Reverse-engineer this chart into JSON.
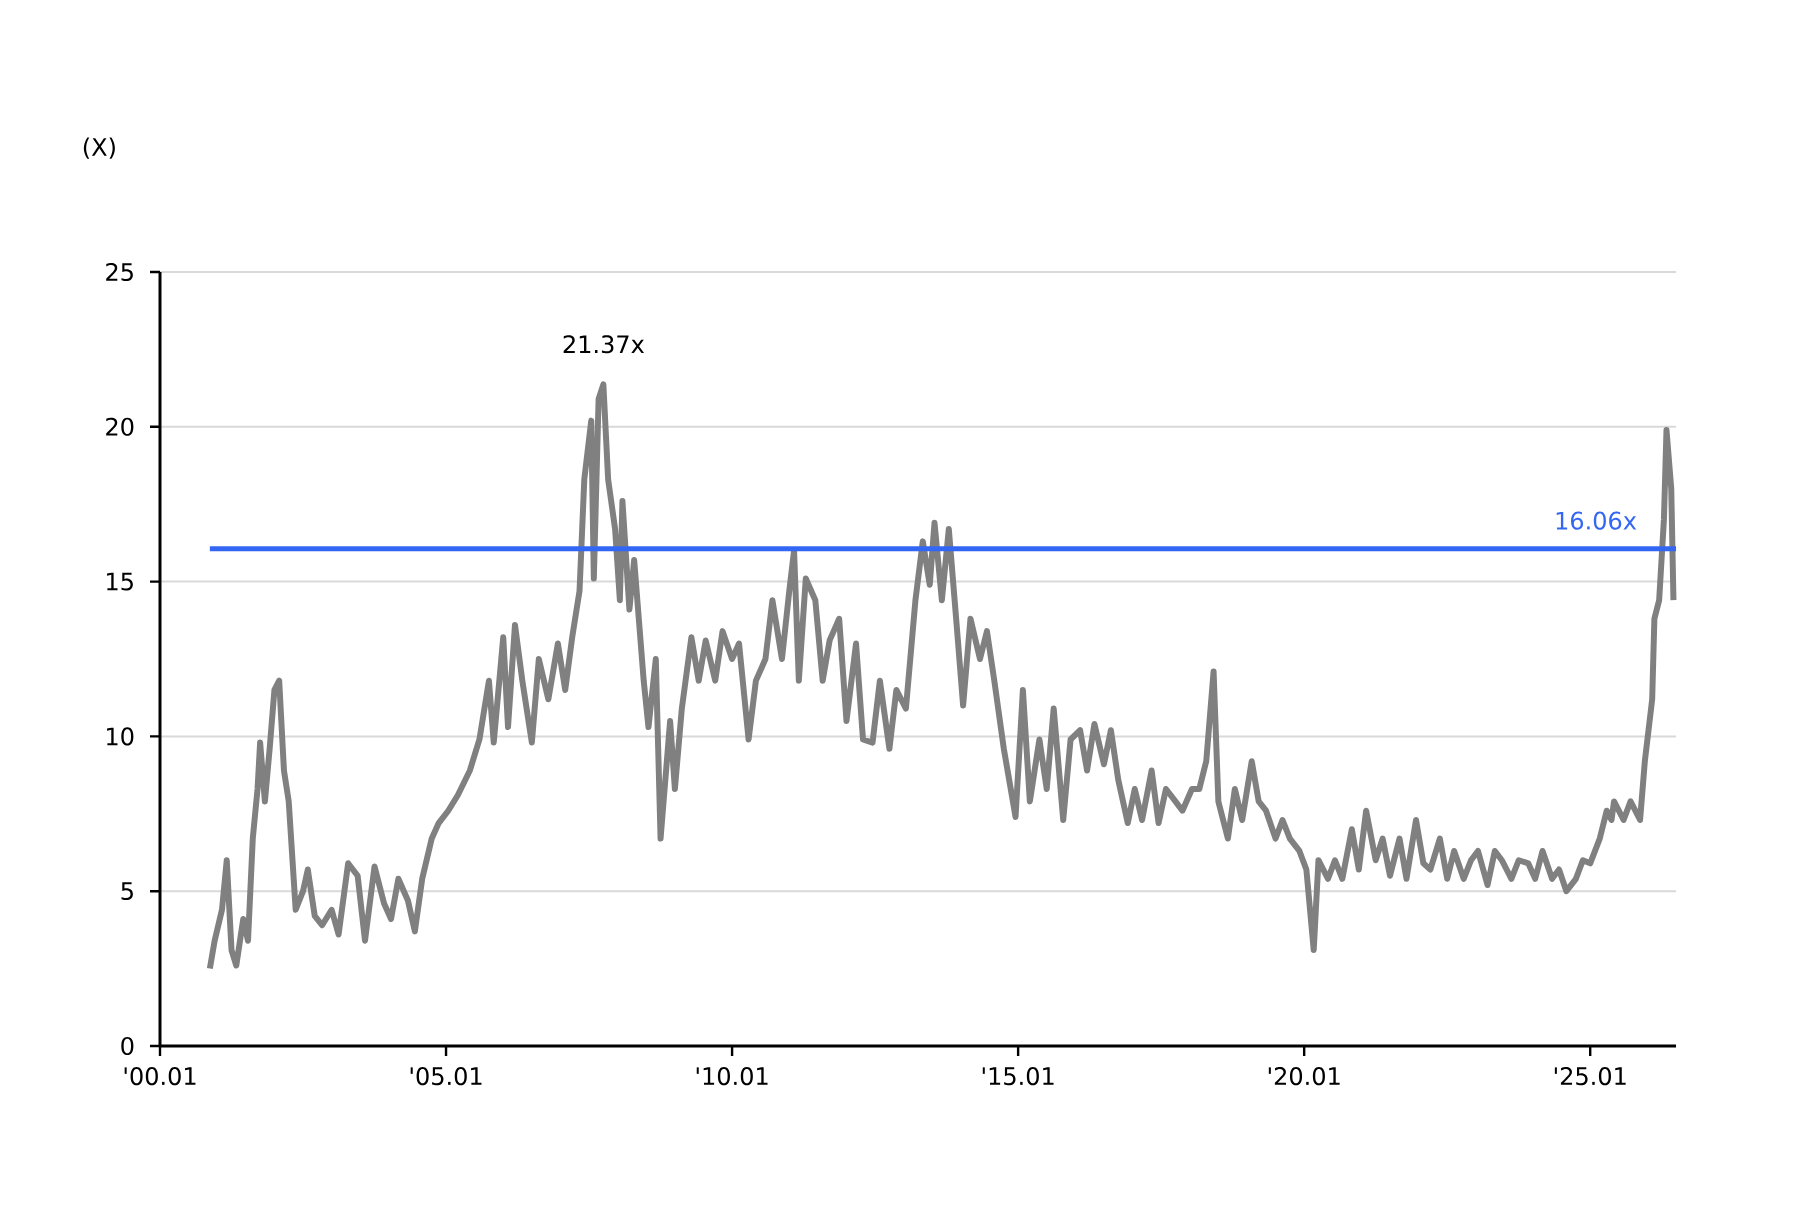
{
  "chart_data": {
    "type": "line",
    "ylabel": "(X)",
    "xlim": [
      "2000-01",
      "2026-07"
    ],
    "xticks": [
      {
        "value": "2000-01",
        "label": "'00.01"
      },
      {
        "value": "2005-01",
        "label": "'05.01"
      },
      {
        "value": "2010-01",
        "label": "'10.01"
      },
      {
        "value": "2015-01",
        "label": "'15.01"
      },
      {
        "value": "2020-01",
        "label": "'20.01"
      },
      {
        "value": "2025-01",
        "label": "'25.01"
      }
    ],
    "ylim": [
      0,
      25
    ],
    "yticks": [
      0,
      5,
      10,
      15,
      20,
      25
    ],
    "grid": "y",
    "marker": "none",
    "line_style": "solid",
    "x": [
      "2000-11-15",
      "2000-12-15",
      "2001-02-01",
      "2001-03-01",
      "2001-04-01",
      "2001-05-01",
      "2001-06-15",
      "2001-07-15",
      "2001-08-15",
      "2001-09-15",
      "2001-10-01",
      "2001-11-01",
      "2001-12-01",
      "2002-01-01",
      "2002-02-01",
      "2002-03-01",
      "2002-04-01",
      "2002-05-15",
      "2002-07-01",
      "2002-08-01",
      "2002-09-15",
      "2002-11-01",
      "2003-01-01",
      "2003-02-15",
      "2003-04-15",
      "2003-06-15",
      "2003-08-01",
      "2003-10-01",
      "2003-12-01",
      "2004-01-15",
      "2004-03-01",
      "2004-05-01",
      "2004-06-15",
      "2004-08-01",
      "2004-10-01",
      "2004-11-15",
      "2005-01-15",
      "2005-03-15",
      "2005-06-01",
      "2005-08-01",
      "2005-10-01",
      "2005-11-01",
      "2006-01-01",
      "2006-02-01",
      "2006-03-15",
      "2006-05-01",
      "2006-07-01",
      "2006-08-15",
      "2006-10-15",
      "2006-12-15",
      "2007-02-01",
      "2007-03-15",
      "2007-05-01",
      "2007-06-01",
      "2007-07-15",
      "2007-08-01",
      "2007-09-01",
      "2007-10-01",
      "2007-11-01",
      "2007-12-15",
      "2008-01-15",
      "2008-02-01",
      "2008-03-15",
      "2008-04-15",
      "2008-06-15",
      "2008-07-15",
      "2008-09-01",
      "2008-10-01",
      "2008-12-01",
      "2009-01-01",
      "2009-02-15",
      "2009-04-15",
      "2009-06-01",
      "2009-07-15",
      "2009-09-15",
      "2009-11-01",
      "2010-01-01",
      "2010-02-15",
      "2010-04-15",
      "2010-06-01",
      "2010-08-01",
      "2010-09-15",
      "2010-11-15",
      "2011-01-01",
      "2011-02-01",
      "2011-03-01",
      "2011-04-15",
      "2011-06-15",
      "2011-08-01",
      "2011-09-15",
      "2011-11-15",
      "2012-01-01",
      "2012-03-01",
      "2012-04-15",
      "2012-06-15",
      "2012-08-01",
      "2012-10-01",
      "2012-11-15",
      "2013-01-15",
      "2013-03-15",
      "2013-05-01",
      "2013-06-15",
      "2013-07-15",
      "2013-09-01",
      "2013-10-15",
      "2013-12-01",
      "2014-01-15",
      "2014-03-01",
      "2014-05-01",
      "2014-06-15",
      "2014-08-01",
      "2014-10-01",
      "2014-12-15",
      "2015-02-01",
      "2015-03-15",
      "2015-05-15",
      "2015-07-01",
      "2015-08-15",
      "2015-10-15",
      "2015-12-01",
      "2016-02-01",
      "2016-03-15",
      "2016-05-01",
      "2016-07-01",
      "2016-08-15",
      "2016-10-01",
      "2016-12-01",
      "2017-01-15",
      "2017-03-01",
      "2017-05-01",
      "2017-06-15",
      "2017-08-01",
      "2017-10-01",
      "2017-11-15",
      "2018-01-15",
      "2018-03-01",
      "2018-04-15",
      "2018-06-01",
      "2018-07-01",
      "2018-09-01",
      "2018-10-15",
      "2018-12-01",
      "2019-02-01",
      "2019-03-15",
      "2019-05-01",
      "2019-07-01",
      "2019-08-15",
      "2019-10-01",
      "2019-12-01",
      "2020-01-15",
      "2020-03-01",
      "2020-04-01",
      "2020-06-01",
      "2020-07-15",
      "2020-09-01",
      "2020-11-01",
      "2020-12-15",
      "2021-02-01",
      "2021-04-01",
      "2021-05-15",
      "2021-07-01",
      "2021-09-01",
      "2021-10-15",
      "2021-12-15",
      "2022-02-01",
      "2022-03-15",
      "2022-05-15",
      "2022-07-01",
      "2022-08-15",
      "2022-10-15",
      "2022-12-01",
      "2023-01-15",
      "2023-03-15",
      "2023-05-01",
      "2023-06-15",
      "2023-08-15",
      "2023-10-01",
      "2023-12-01",
      "2024-01-15",
      "2024-03-01",
      "2024-05-01",
      "2024-06-15",
      "2024-08-01",
      "2024-10-01",
      "2024-11-15",
      "2025-01-01",
      "2025-03-01",
      "2025-04-15",
      "2025-05-15",
      "2025-06-01",
      "2025-08-01",
      "2025-09-15",
      "2025-11-15",
      "2025-12-15",
      "2026-02-01",
      "2026-02-15",
      "2026-03-15",
      "2026-04-15",
      "2026-05-01",
      "2026-06-01",
      "2026-06-15"
    ],
    "values": [
      2.5,
      3.4,
      4.4,
      6.0,
      3.1,
      2.6,
      4.1,
      3.4,
      6.7,
      8.3,
      9.8,
      7.9,
      9.6,
      11.5,
      11.8,
      8.9,
      7.9,
      4.4,
      5.0,
      5.7,
      4.2,
      3.9,
      4.4,
      3.6,
      5.9,
      5.5,
      3.4,
      5.8,
      4.6,
      4.1,
      5.4,
      4.7,
      3.7,
      5.4,
      6.7,
      7.2,
      7.6,
      8.1,
      8.9,
      9.9,
      11.8,
      9.8,
      13.2,
      10.3,
      13.6,
      11.8,
      9.8,
      12.5,
      11.2,
      13.0,
      11.5,
      13.2,
      14.7,
      18.3,
      20.2,
      15.1,
      20.9,
      21.37,
      18.3,
      16.7,
      14.4,
      17.6,
      14.1,
      15.7,
      11.8,
      10.3,
      12.5,
      6.7,
      10.5,
      8.3,
      10.9,
      13.2,
      11.8,
      13.1,
      11.8,
      13.4,
      12.5,
      13.0,
      9.9,
      11.8,
      12.5,
      14.4,
      12.5,
      14.7,
      16.0,
      11.8,
      15.1,
      14.4,
      11.8,
      13.1,
      13.8,
      10.5,
      13.0,
      9.9,
      9.8,
      11.8,
      9.6,
      11.5,
      10.9,
      14.4,
      16.3,
      14.9,
      16.9,
      14.4,
      16.7,
      13.8,
      11.0,
      13.8,
      12.5,
      13.4,
      11.8,
      9.6,
      7.4,
      11.5,
      7.9,
      9.9,
      8.3,
      10.9,
      7.3,
      9.9,
      10.2,
      8.9,
      10.4,
      9.1,
      10.2,
      8.6,
      7.2,
      8.3,
      7.3,
      8.9,
      7.2,
      8.3,
      7.9,
      7.6,
      8.3,
      8.3,
      9.2,
      12.1,
      7.9,
      6.7,
      8.3,
      7.3,
      9.2,
      7.9,
      7.6,
      6.7,
      7.3,
      6.7,
      6.3,
      5.7,
      3.1,
      6.0,
      5.4,
      6.0,
      5.4,
      7.0,
      5.7,
      7.6,
      6.0,
      6.7,
      5.5,
      6.7,
      5.4,
      7.3,
      5.9,
      5.7,
      6.7,
      5.4,
      6.3,
      5.4,
      6.0,
      6.3,
      5.2,
      6.3,
      6.0,
      5.4,
      6.0,
      5.9,
      5.4,
      6.3,
      5.4,
      5.7,
      5.0,
      5.4,
      6.0,
      5.9,
      6.7,
      7.6,
      7.3,
      7.9,
      7.3,
      7.9,
      7.3,
      9.2,
      11.2,
      13.8,
      14.4,
      17.0,
      19.9,
      18.0,
      14.4
    ],
    "color": "#808080",
    "ref_lines": [
      {
        "axis": "y",
        "value": 16.06,
        "label": "16.06x",
        "color": "#3366f2",
        "line_style": "solid"
      }
    ],
    "annotations": [
      {
        "text": "21.37x",
        "x": "2007-10-01",
        "y": 21.37
      }
    ]
  }
}
